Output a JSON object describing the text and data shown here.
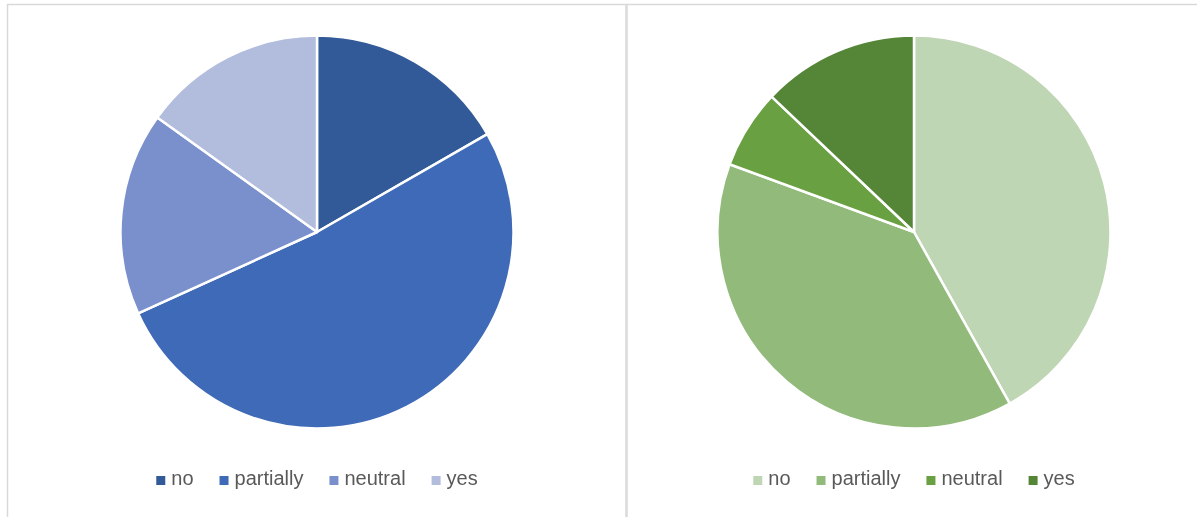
{
  "chart_data": [
    {
      "type": "pie",
      "categories": [
        "no",
        "partially",
        "neutral",
        "yes"
      ],
      "values": [
        16.7,
        51.5,
        16.7,
        15.1
      ],
      "colors": [
        "#325a98",
        "#3f6ab7",
        "#7a90cd",
        "#b2bcdd"
      ],
      "legend": "bottom"
    },
    {
      "type": "pie",
      "categories": [
        "no",
        "partially",
        "neutral",
        "yes"
      ],
      "values": [
        41.9,
        38.7,
        6.5,
        12.9
      ],
      "colors": [
        "#bfd6b4",
        "#92ba7b",
        "#69a041",
        "#558536"
      ],
      "legend": "bottom"
    }
  ]
}
